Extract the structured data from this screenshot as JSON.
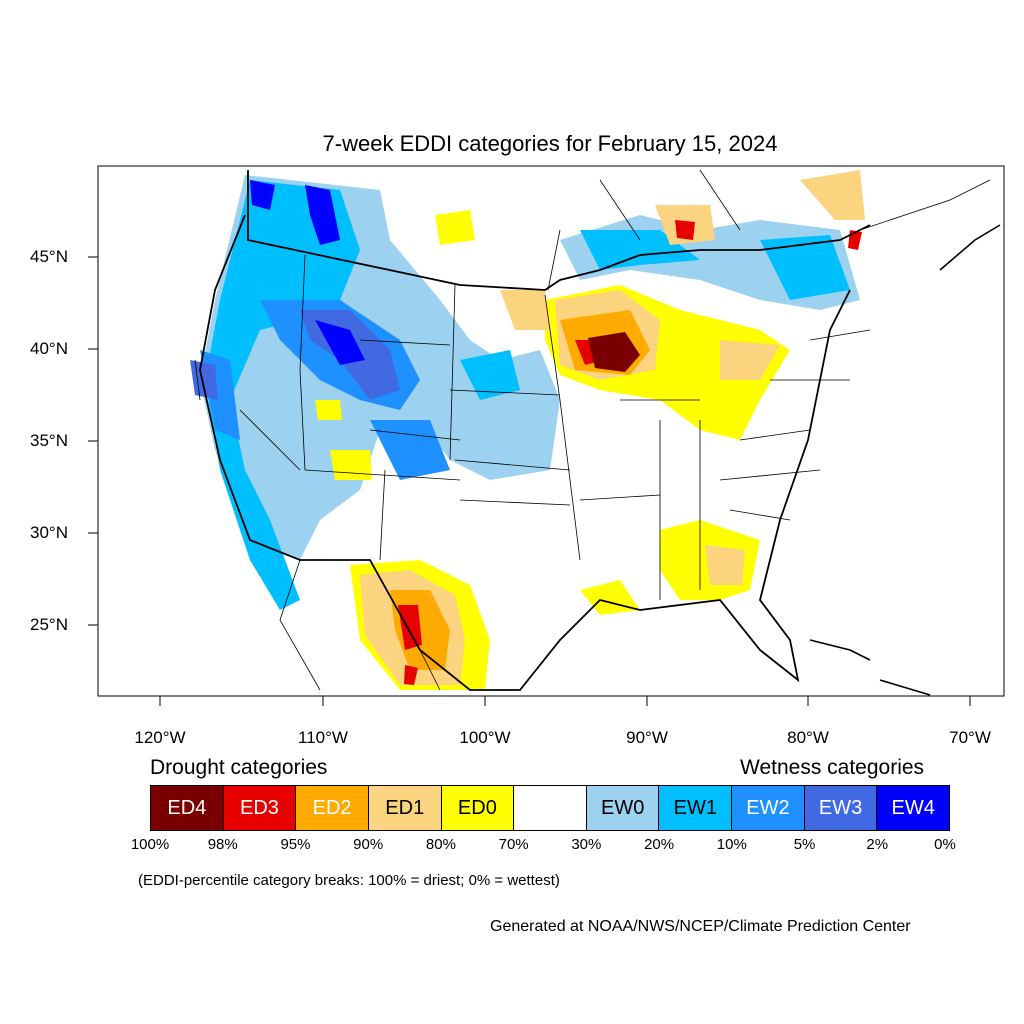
{
  "title": "7-week EDDI categories for February 15, 2024",
  "lat_labels": [
    "45°N",
    "40°N",
    "35°N",
    "30°N",
    "25°N"
  ],
  "lon_labels": [
    "120°W",
    "110°W",
    "100°W",
    "90°W",
    "80°W",
    "70°W"
  ],
  "legend": {
    "drought_heading": "Drought categories",
    "wetness_heading": "Wetness categories",
    "categories": [
      {
        "label": "ED4",
        "color": "#7a0000",
        "text_color": "#ffffff"
      },
      {
        "label": "ED3",
        "color": "#e60000",
        "text_color": "#ffffff"
      },
      {
        "label": "ED2",
        "color": "#ffaa00",
        "text_color": "#ffffff"
      },
      {
        "label": "ED1",
        "color": "#fcd37f",
        "text_color": "#000000"
      },
      {
        "label": "ED0",
        "color": "#ffff00",
        "text_color": "#000000"
      },
      {
        "label": "",
        "color": "#ffffff",
        "text_color": "#000000"
      },
      {
        "label": "EW0",
        "color": "#9cd2f0",
        "text_color": "#000000"
      },
      {
        "label": "EW1",
        "color": "#00bfff",
        "text_color": "#000000"
      },
      {
        "label": "EW2",
        "color": "#1e90ff",
        "text_color": "#ffffff"
      },
      {
        "label": "EW3",
        "color": "#4169e1",
        "text_color": "#ffffff"
      },
      {
        "label": "EW4",
        "color": "#0000ff",
        "text_color": "#ffffff"
      }
    ],
    "percentile_breaks": [
      "100%",
      "98%",
      "95%",
      "90%",
      "80%",
      "70%",
      "30%",
      "20%",
      "10%",
      "5%",
      "2%",
      "0%"
    ]
  },
  "breaks_note": "(EDDI-percentile category breaks: 100% = driest; 0% = wettest)",
  "credit": "Generated at NOAA/NWS/NCEP/Climate Prediction Center"
}
